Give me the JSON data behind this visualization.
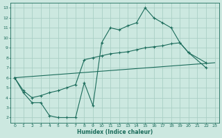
{
  "xlabel": "Humidex (Indice chaleur)",
  "xlim": [
    -0.5,
    23.5
  ],
  "ylim": [
    1.5,
    13.5
  ],
  "xticks": [
    0,
    1,
    2,
    3,
    4,
    5,
    6,
    7,
    8,
    9,
    10,
    11,
    12,
    13,
    14,
    15,
    16,
    17,
    18,
    19,
    20,
    21,
    22,
    23
  ],
  "yticks": [
    2,
    3,
    4,
    5,
    6,
    7,
    8,
    9,
    10,
    11,
    12,
    13
  ],
  "bg_color": "#cce8e0",
  "line_color": "#1a6b5a",
  "grid_color": "#aacfc5",
  "line1_x": [
    0,
    1,
    2,
    3,
    4,
    5,
    6,
    7,
    8,
    9,
    10,
    11,
    12,
    13,
    14,
    15,
    16,
    17,
    18,
    19,
    20,
    22
  ],
  "line1_y": [
    6,
    4.5,
    3.5,
    3.5,
    2.2,
    2.0,
    2.0,
    2.0,
    5.5,
    3.2,
    9.5,
    11.0,
    10.8,
    11.2,
    11.5,
    13.0,
    12.0,
    11.5,
    11.0,
    9.5,
    8.5,
    7.0
  ],
  "line2_x": [
    0,
    23
  ],
  "line2_y": [
    6.0,
    7.5
  ],
  "line3_x": [
    0,
    1,
    2,
    3,
    4,
    5,
    6,
    7,
    8,
    9,
    10,
    11,
    12,
    13,
    14,
    15,
    16,
    17,
    18,
    19,
    20,
    22
  ],
  "line3_y": [
    6.0,
    4.7,
    4.0,
    4.2,
    4.5,
    4.7,
    5.0,
    5.3,
    7.8,
    8.0,
    8.2,
    8.4,
    8.5,
    8.6,
    8.8,
    9.0,
    9.1,
    9.2,
    9.4,
    9.5,
    8.5,
    7.5
  ]
}
